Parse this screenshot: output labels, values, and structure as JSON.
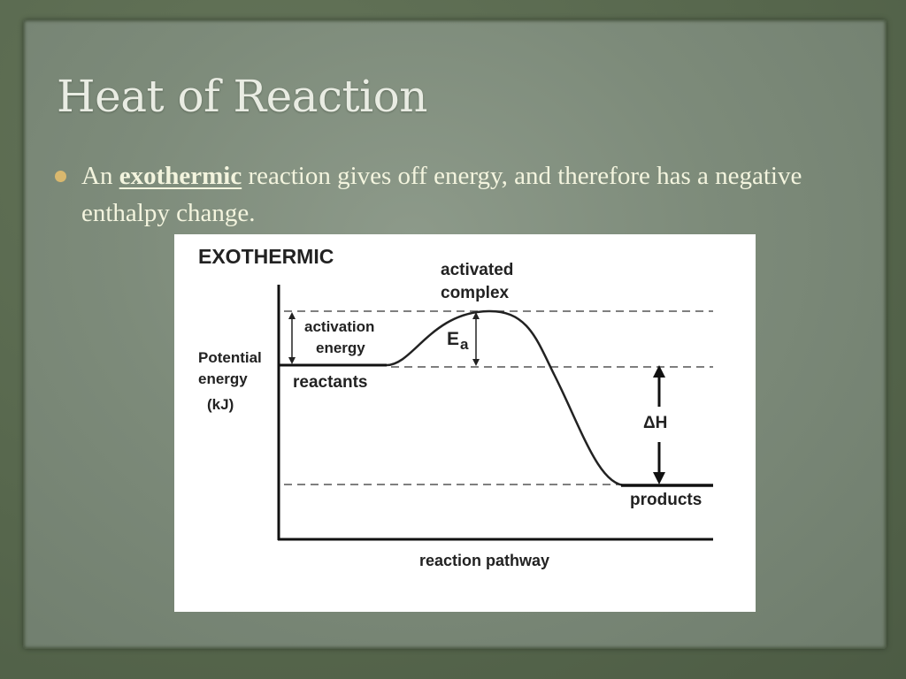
{
  "slide": {
    "title": "Heat of Reaction",
    "bullet": {
      "prefix": "An ",
      "emphasis": "exothermic",
      "suffix": " reaction gives off energy, and therefore has a negative enthalpy change."
    }
  },
  "diagram": {
    "heading": "EXOTHERMIC",
    "activated_complex_line1": "activated",
    "activated_complex_line2": "complex",
    "activation_energy_line1": "activation",
    "activation_energy_line2": "energy",
    "ea_main": "E",
    "ea_sub": "a",
    "y_label_line1": "Potential",
    "y_label_line2": "energy",
    "y_label_line3": "(kJ)",
    "reactants": "reactants",
    "products": "products",
    "delta_h": "ΔH",
    "x_label": "reaction pathway"
  },
  "colors": {
    "background": "#56664c",
    "panel": "#7d8b7a",
    "title": "#e9ece3",
    "text": "#f3f4de",
    "bullet": "#d9b86e"
  }
}
